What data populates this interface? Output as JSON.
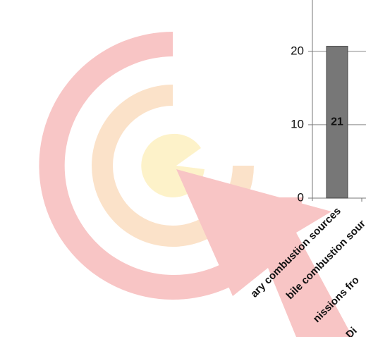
{
  "chart_data": {
    "type": "bar",
    "categories": [
      "ary combustion sources",
      "bile combustion sour",
      "nissions fro",
      "Di"
    ],
    "values": [
      20.7,
      null,
      null,
      null
    ],
    "value_labels": [
      "21",
      null,
      null,
      null
    ],
    "color": "#777777",
    "ylim": [
      0,
      27
    ],
    "yticks": [
      0,
      10,
      20
    ],
    "grid": true
  }
}
